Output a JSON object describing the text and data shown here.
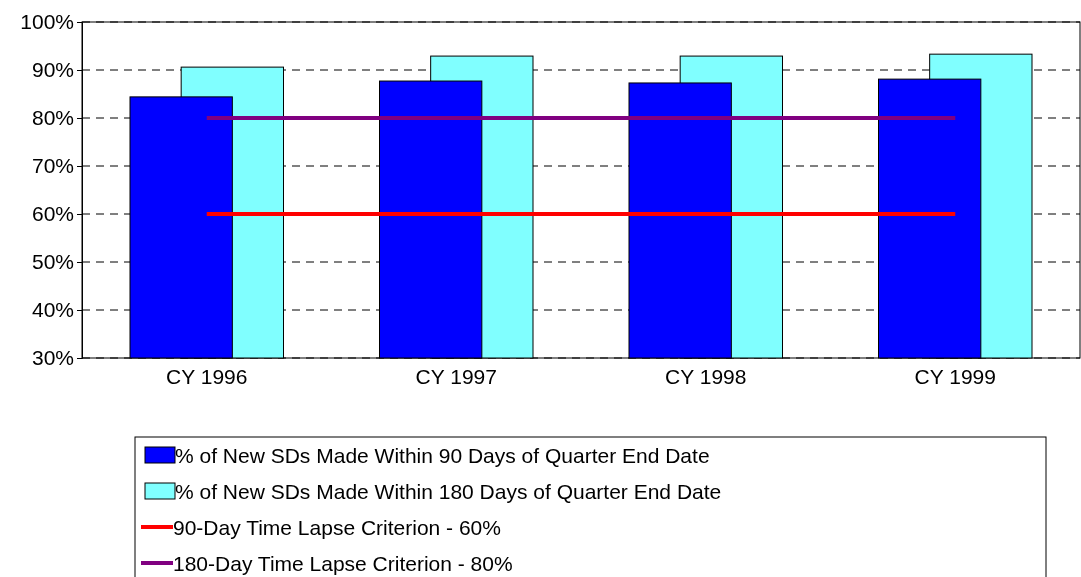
{
  "chart_data": {
    "type": "bar",
    "categories": [
      "CY 1996",
      "CY 1997",
      "CY 1998",
      "CY 1999"
    ],
    "series": [
      {
        "name": "% of New SDs Made Within 90 Days of Quarter End Date",
        "color": "#0000ff",
        "values": [
          84.4,
          87.7,
          87.3,
          88.1
        ]
      },
      {
        "name": "% of New SDs Made Within 180 Days of Quarter End Date",
        "color": "#80ffff",
        "values": [
          90.6,
          92.9,
          92.9,
          93.3
        ]
      },
      {
        "name": "90-Day Time Lapse Criterion - 60%",
        "type": "line",
        "color": "#ff0000",
        "values": [
          60,
          60,
          60,
          60
        ]
      },
      {
        "name": "180-Day Time Lapse Criterion - 80%",
        "type": "line",
        "color": "#800080",
        "values": [
          80,
          80,
          80,
          80
        ]
      }
    ],
    "ylim": [
      30,
      100
    ],
    "yticks": [
      {
        "value": 30,
        "label": "30%"
      },
      {
        "value": 40,
        "label": "40%"
      },
      {
        "value": 50,
        "label": "50%"
      },
      {
        "value": 60,
        "label": "60%"
      },
      {
        "value": 70,
        "label": "70%"
      },
      {
        "value": 80,
        "label": "80%"
      },
      {
        "value": 90,
        "label": "90%"
      },
      {
        "value": 100,
        "label": "100%"
      }
    ],
    "grid": "y",
    "legend": "bottom",
    "line_style": "solid",
    "marker": "none"
  }
}
